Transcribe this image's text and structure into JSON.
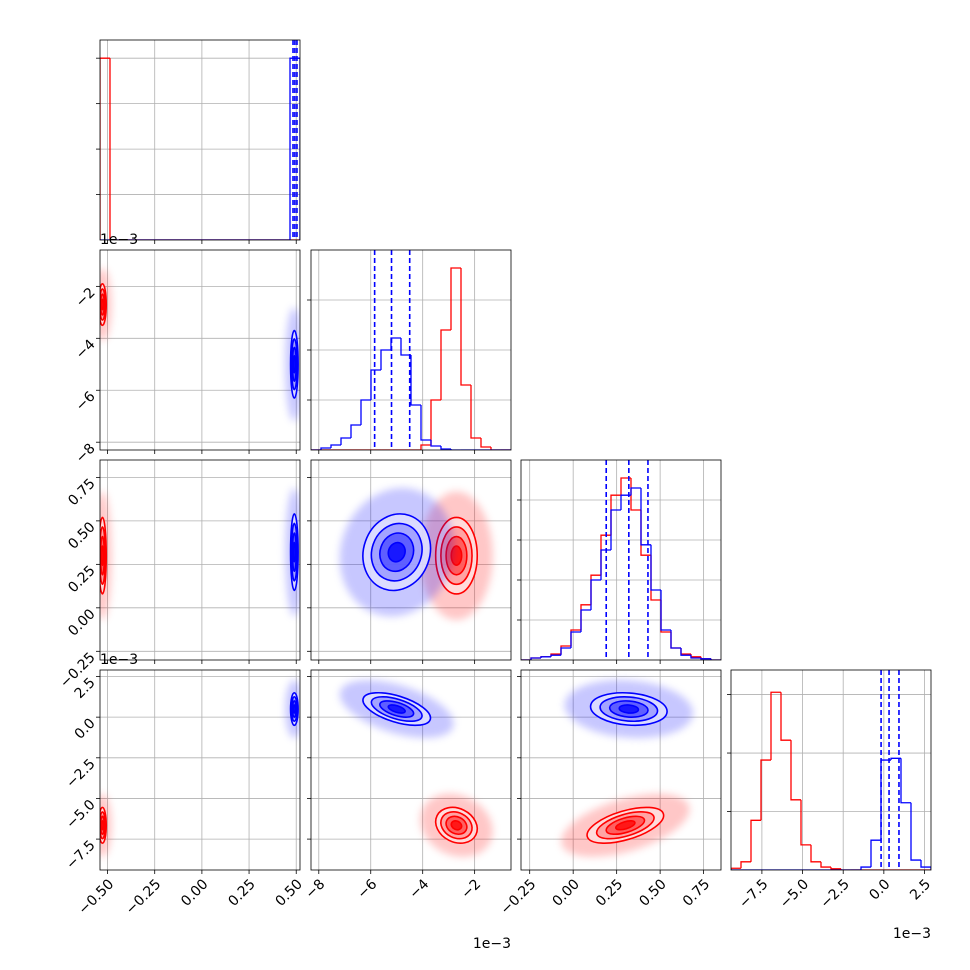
{
  "chart_data": {
    "type": "corner",
    "params": [
      {
        "lim": [
          -0.54,
          0.52
        ],
        "ticks": [
          {
            "value": -0.5,
            "label": "−0.50"
          },
          {
            "value": -0.25,
            "label": "−0.25"
          },
          {
            "value": 0,
            "label": "0.00"
          },
          {
            "value": 0.25,
            "label": "0.25"
          },
          {
            "value": 0.5,
            "label": "0.50"
          }
        ],
        "bins": [
          -0.54,
          -0.487,
          -0.434,
          -0.381,
          -0.328,
          -0.275,
          -0.222,
          -0.169,
          -0.116,
          -0.063,
          -0.01,
          0.043,
          0.096,
          0.149,
          0.202,
          0.255,
          0.308,
          0.361,
          0.414,
          0.467,
          0.52
        ],
        "hist_ylim": [
          0,
          1.1
        ],
        "hist_yticks": [
          0.25,
          0.5,
          0.75,
          1
        ]
      },
      {
        "lim": [
          -8.3,
          -0.6
        ],
        "ticks": [
          {
            "value": -8,
            "label": "−8"
          },
          {
            "value": -6,
            "label": "−6"
          },
          {
            "value": -4,
            "label": "−4"
          },
          {
            "value": -2,
            "label": "−2"
          }
        ],
        "offset": "1e−3",
        "bins": [
          -8.3,
          -7.915,
          -7.53,
          -7.145,
          -6.76,
          -6.375,
          -5.99,
          -5.605,
          -5.22,
          -4.835,
          -4.45,
          -4.065,
          -3.68,
          -3.295,
          -2.91,
          -2.525,
          -2.14,
          -1.755,
          -1.37,
          -0.985,
          -0.6
        ],
        "hist_ylim": [
          0,
          4
        ],
        "hist_yticks": [
          1,
          2,
          3
        ]
      },
      {
        "lim": [
          -0.3,
          0.85
        ],
        "ticks": [
          {
            "value": -0.25,
            "label": "−0.25"
          },
          {
            "value": 0,
            "label": "0.00"
          },
          {
            "value": 0.25,
            "label": "0.25"
          },
          {
            "value": 0.5,
            "label": "0.50"
          },
          {
            "value": 0.75,
            "label": "0.75"
          }
        ],
        "bins": [
          -0.3,
          -0.2425,
          -0.185,
          -0.1275,
          -0.07,
          -0.0125,
          0.045,
          0.1025,
          0.16,
          0.2175,
          0.275,
          0.3325,
          0.39,
          0.4475,
          0.505,
          0.5625,
          0.62,
          0.6775,
          0.735,
          0.7925,
          0.85
        ],
        "hist_ylim": [
          0,
          5
        ],
        "hist_yticks": [
          1,
          2,
          3,
          4
        ]
      },
      {
        "lim": [
          -9.4,
          2.9
        ],
        "ticks": [
          {
            "value": -7.5,
            "label": "−7.5"
          },
          {
            "value": -5,
            "label": "−5.0"
          },
          {
            "value": -2.5,
            "label": "−2.5"
          },
          {
            "value": 0,
            "label": "0.0"
          },
          2.5
        ],
        "offset": "1e−3",
        "bins": [
          -9.4,
          -8.785,
          -8.17,
          -7.555,
          -6.94,
          -6.325,
          -5.71,
          -5.095,
          -4.48,
          -3.865,
          -3.25,
          -2.635,
          -2.02,
          -1.405,
          -0.79,
          -0.175,
          0.44,
          1.055,
          1.67,
          2.285,
          2.9
        ],
        "hist_ylim": [
          0,
          3.42
        ],
        "hist_yticks": [
          1,
          2,
          3
        ]
      }
    ],
    "series": [
      {
        "color": "#ff0000",
        "mean": [
          -0.527,
          -2.7,
          0.3,
          -6.65
        ],
        "sd": [
          0.01,
          0.4,
          0.11,
          0.55
        ],
        "corr": [
          [
            0
          ],
          [
            0,
            0
          ],
          [
            0,
            -0.2,
            0.55
          ]
        ],
        "hist": [
          [
            1,
            0,
            0,
            0,
            0,
            0,
            0,
            0,
            0,
            0,
            0,
            0,
            0,
            0,
            0,
            0,
            0,
            0,
            0,
            0
          ],
          [
            0,
            0,
            0,
            0,
            0,
            0,
            0,
            0,
            0,
            0,
            0,
            0.1,
            1.0,
            2.4,
            3.64,
            1.3,
            0.24,
            0.06,
            0,
            0
          ],
          [
            0,
            0.05,
            0.08,
            0.15,
            0.35,
            0.75,
            1.38,
            2.12,
            3.12,
            4.12,
            4.55,
            3.75,
            2.62,
            1.5,
            0.7,
            0.3,
            0.15,
            0.08,
            0.03,
            0
          ],
          [
            0.03,
            0.14,
            0.85,
            1.88,
            3.04,
            2.22,
            1.2,
            0.43,
            0.14,
            0.05,
            0.02,
            0,
            0,
            0,
            0,
            0,
            0,
            0,
            0,
            0
          ]
        ]
      },
      {
        "color": "#0000ff",
        "mean": [
          0.49,
          -5.0,
          0.32,
          0.5
        ],
        "sd": [
          0.01,
          0.65,
          0.11,
          0.5
        ],
        "corr": [
          [
            0
          ],
          [
            0,
            0.1
          ],
          [
            0,
            -0.55,
            -0.15
          ]
        ],
        "hist": [
          [
            0,
            0,
            0,
            0,
            0,
            0,
            0,
            0,
            0,
            0,
            0,
            0,
            0,
            0,
            0,
            0,
            0,
            0,
            0,
            1
          ],
          [
            0,
            0.04,
            0.1,
            0.24,
            0.5,
            1.0,
            1.6,
            2.0,
            2.24,
            1.9,
            0.9,
            0.2,
            0.08,
            0.02,
            0,
            0,
            0,
            0,
            0,
            0
          ],
          [
            0,
            0.05,
            0.08,
            0.12,
            0.3,
            0.7,
            1.25,
            2,
            2.75,
            3.75,
            4.12,
            4.3,
            2.88,
            1.75,
            0.75,
            0.3,
            0.12,
            0.05,
            0.03,
            0
          ],
          [
            0,
            0,
            0,
            0,
            0,
            0,
            0,
            0,
            0,
            0,
            0,
            0,
            0,
            0.05,
            0.51,
            1.88,
            1.91,
            1.15,
            0.17,
            0.05
          ]
        ],
        "quantiles": [
          [
            0.483,
            0.493,
            0.504
          ],
          [
            -5.85,
            -5.2,
            -4.5
          ],
          [
            0.19,
            0.32,
            0.43
          ],
          [
            -0.17,
            0.32,
            0.93
          ]
        ]
      }
    ]
  }
}
